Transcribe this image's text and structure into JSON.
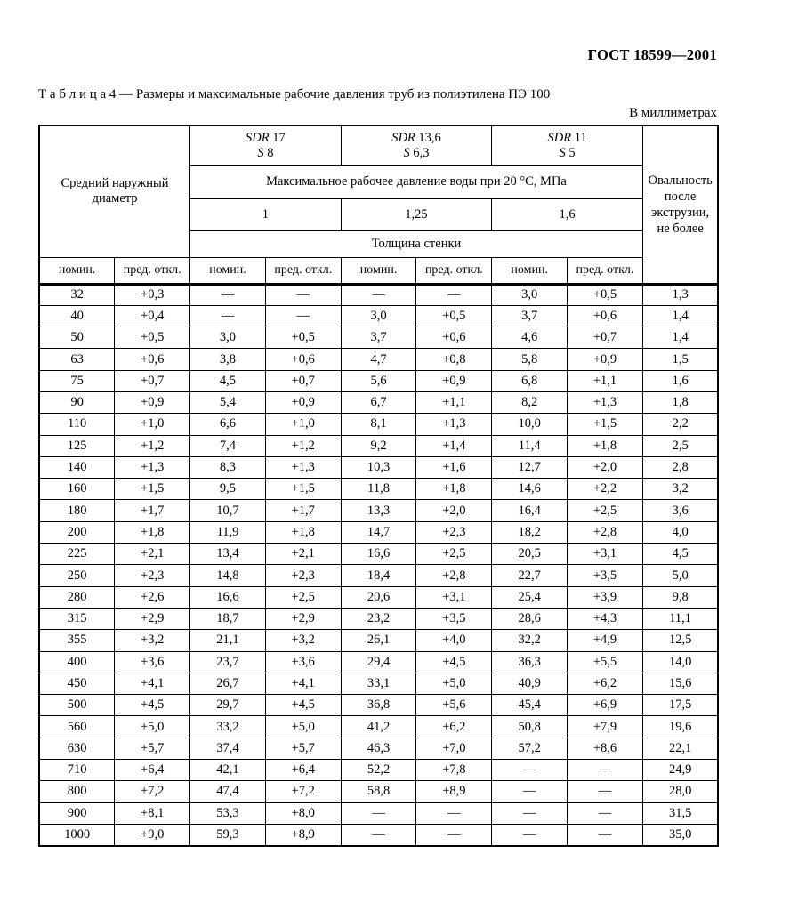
{
  "page": {
    "doc_number": "ГОСТ 18599—2001",
    "caption": "Т а б л и ц а  4 — Размеры и максимальные рабочие давления труб из полиэтилена ПЭ 100",
    "units_note": "В миллиметрах"
  },
  "table": {
    "header": {
      "diameter_label": "Средний наружный диаметр",
      "sdr_groups": [
        {
          "sdr_word": "SDR",
          "sdr_num": "17",
          "s_word": "S",
          "s_num": "8",
          "pressure": "1"
        },
        {
          "sdr_word": "SDR",
          "sdr_num": "13,6",
          "s_word": "S",
          "s_num": "6,3",
          "pressure": "1,25"
        },
        {
          "sdr_word": "SDR",
          "sdr_num": "11",
          "s_word": "S",
          "s_num": "5",
          "pressure": "1,6"
        }
      ],
      "pressure_label": "Максимальное рабочее давление воды при 20 °С, МПа",
      "wall_thickness_label": "Толщина стенки",
      "nominal_label": "номин.",
      "tolerance_label": "пред. откл.",
      "ovality_label": "Овальность после экструзии, не более"
    },
    "rows": [
      [
        "32",
        "+0,3",
        "—",
        "—",
        "—",
        "—",
        "3,0",
        "+0,5",
        "1,3"
      ],
      [
        "40",
        "+0,4",
        "—",
        "—",
        "3,0",
        "+0,5",
        "3,7",
        "+0,6",
        "1,4"
      ],
      [
        "50",
        "+0,5",
        "3,0",
        "+0,5",
        "3,7",
        "+0,6",
        "4,6",
        "+0,7",
        "1,4"
      ],
      [
        "63",
        "+0,6",
        "3,8",
        "+0,6",
        "4,7",
        "+0,8",
        "5,8",
        "+0,9",
        "1,5"
      ],
      [
        "75",
        "+0,7",
        "4,5",
        "+0,7",
        "5,6",
        "+0,9",
        "6,8",
        "+1,1",
        "1,6"
      ],
      [
        "90",
        "+0,9",
        "5,4",
        "+0,9",
        "6,7",
        "+1,1",
        "8,2",
        "+1,3",
        "1,8"
      ],
      [
        "110",
        "+1,0",
        "6,6",
        "+1,0",
        "8,1",
        "+1,3",
        "10,0",
        "+1,5",
        "2,2"
      ],
      [
        "125",
        "+1,2",
        "7,4",
        "+1,2",
        "9,2",
        "+1,4",
        "11,4",
        "+1,8",
        "2,5"
      ],
      [
        "140",
        "+1,3",
        "8,3",
        "+1,3",
        "10,3",
        "+1,6",
        "12,7",
        "+2,0",
        "2,8"
      ],
      [
        "160",
        "+1,5",
        "9,5",
        "+1,5",
        "11,8",
        "+1,8",
        "14,6",
        "+2,2",
        "3,2"
      ],
      [
        "180",
        "+1,7",
        "10,7",
        "+1,7",
        "13,3",
        "+2,0",
        "16,4",
        "+2,5",
        "3,6"
      ],
      [
        "200",
        "+1,8",
        "11,9",
        "+1,8",
        "14,7",
        "+2,3",
        "18,2",
        "+2,8",
        "4,0"
      ],
      [
        "225",
        "+2,1",
        "13,4",
        "+2,1",
        "16,6",
        "+2,5",
        "20,5",
        "+3,1",
        "4,5"
      ],
      [
        "250",
        "+2,3",
        "14,8",
        "+2,3",
        "18,4",
        "+2,8",
        "22,7",
        "+3,5",
        "5,0"
      ],
      [
        "280",
        "+2,6",
        "16,6",
        "+2,5",
        "20,6",
        "+3,1",
        "25,4",
        "+3,9",
        "9,8"
      ],
      [
        "315",
        "+2,9",
        "18,7",
        "+2,9",
        "23,2",
        "+3,5",
        "28,6",
        "+4,3",
        "11,1"
      ],
      [
        "355",
        "+3,2",
        "21,1",
        "+3,2",
        "26,1",
        "+4,0",
        "32,2",
        "+4,9",
        "12,5"
      ],
      [
        "400",
        "+3,6",
        "23,7",
        "+3,6",
        "29,4",
        "+4,5",
        "36,3",
        "+5,5",
        "14,0"
      ],
      [
        "450",
        "+4,1",
        "26,7",
        "+4,1",
        "33,1",
        "+5,0",
        "40,9",
        "+6,2",
        "15,6"
      ],
      [
        "500",
        "+4,5",
        "29,7",
        "+4,5",
        "36,8",
        "+5,6",
        "45,4",
        "+6,9",
        "17,5"
      ],
      [
        "560",
        "+5,0",
        "33,2",
        "+5,0",
        "41,2",
        "+6,2",
        "50,8",
        "+7,9",
        "19,6"
      ],
      [
        "630",
        "+5,7",
        "37,4",
        "+5,7",
        "46,3",
        "+7,0",
        "57,2",
        "+8,6",
        "22,1"
      ],
      [
        "710",
        "+6,4",
        "42,1",
        "+6,4",
        "52,2",
        "+7,8",
        "—",
        "—",
        "24,9"
      ],
      [
        "800",
        "+7,2",
        "47,4",
        "+7,2",
        "58,8",
        "+8,9",
        "—",
        "—",
        "28,0"
      ],
      [
        "900",
        "+8,1",
        "53,3",
        "+8,0",
        "—",
        "—",
        "—",
        "—",
        "31,5"
      ],
      [
        "1000",
        "+9,0",
        "59,3",
        "+8,9",
        "—",
        "—",
        "—",
        "—",
        "35,0"
      ]
    ]
  }
}
